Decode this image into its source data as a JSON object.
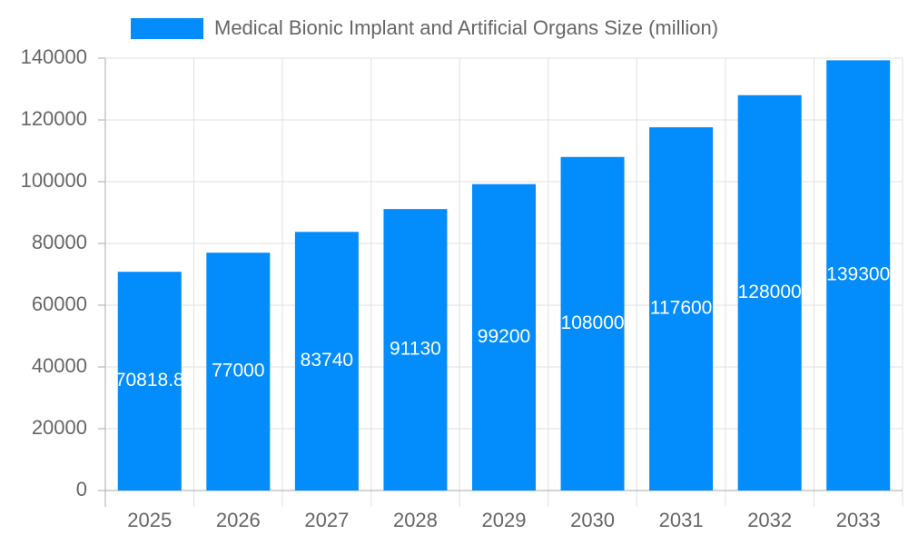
{
  "chart_data": {
    "type": "bar",
    "categories": [
      "2025",
      "2026",
      "2027",
      "2028",
      "2029",
      "2030",
      "2031",
      "2032",
      "2033"
    ],
    "series": [
      {
        "name": "Medical Bionic Implant and Artificial Organs Size (million)",
        "color": "#038cfc",
        "values": [
          70818.8,
          77000,
          83740,
          91130,
          99200,
          108000,
          117600,
          128000,
          139300
        ]
      }
    ],
    "ylim": [
      0,
      140000
    ],
    "yticks": [
      0,
      20000,
      40000,
      60000,
      80000,
      100000,
      120000,
      140000
    ],
    "grid": true,
    "legend": "top"
  }
}
